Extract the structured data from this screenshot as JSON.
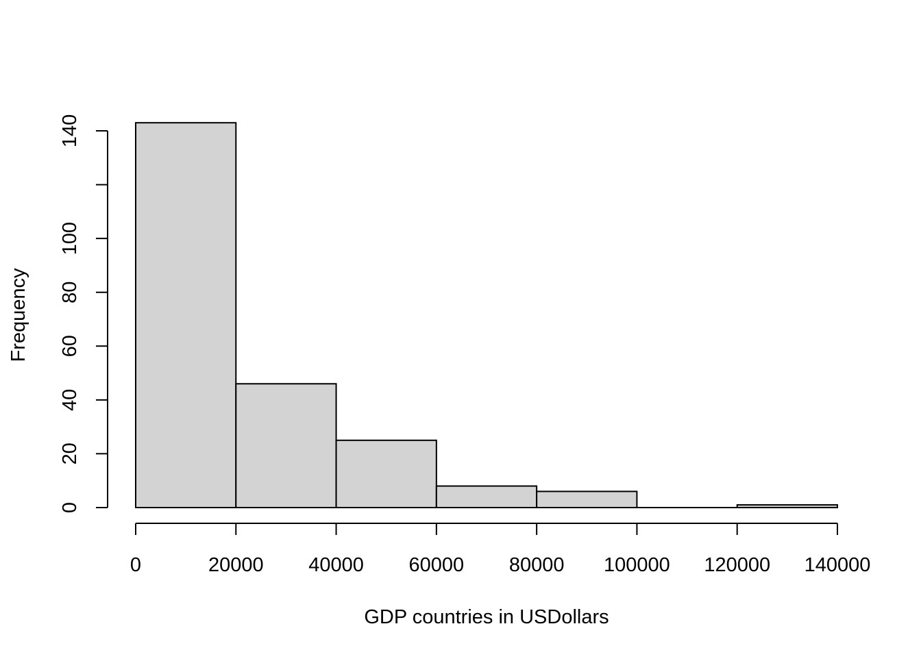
{
  "chart_data": {
    "type": "histogram",
    "title": "",
    "xlabel": "GDP countries in USDollars",
    "ylabel": "Frequency",
    "bins": [
      {
        "x0": 0,
        "x1": 20000,
        "count": 143
      },
      {
        "x0": 20000,
        "x1": 40000,
        "count": 46
      },
      {
        "x0": 40000,
        "x1": 60000,
        "count": 25
      },
      {
        "x0": 60000,
        "x1": 80000,
        "count": 8
      },
      {
        "x0": 80000,
        "x1": 100000,
        "count": 6
      },
      {
        "x0": 100000,
        "x1": 120000,
        "count": 0
      },
      {
        "x0": 120000,
        "x1": 140000,
        "count": 1
      }
    ],
    "xlim": [
      0,
      140000
    ],
    "ylim": [
      0,
      140
    ],
    "x_ticks": [
      0,
      20000,
      40000,
      60000,
      80000,
      100000,
      120000,
      140000
    ],
    "x_tick_labels": [
      "0",
      "20000",
      "40000",
      "60000",
      "80000",
      "100000",
      "120000",
      "140000"
    ],
    "y_ticks": [
      0,
      20,
      40,
      60,
      80,
      100,
      120,
      140
    ],
    "y_tick_labels": [
      "0",
      "20",
      "40",
      "60",
      "80",
      "100",
      "",
      "140"
    ],
    "bar_fill": "#d3d3d3",
    "bar_stroke": "#000000",
    "grid": false,
    "legend": "none"
  }
}
